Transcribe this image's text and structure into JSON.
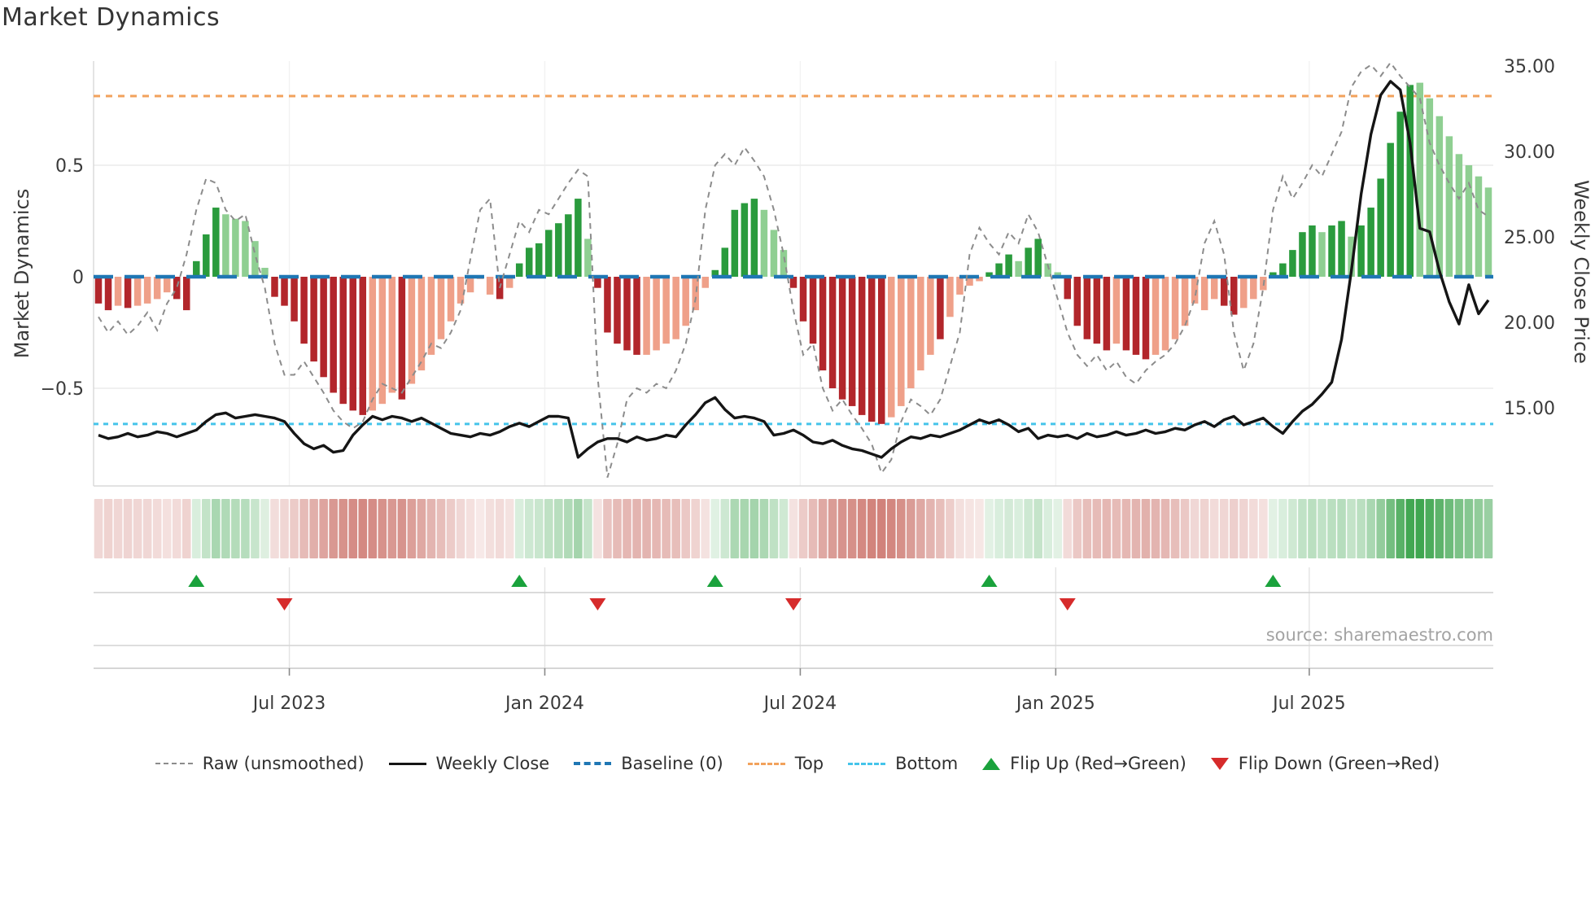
{
  "title": "Market Dynamics",
  "left_axis": {
    "label": "Market Dynamics",
    "ticks": [
      "0.5",
      "0",
      "−0.5"
    ],
    "tick_values": [
      0.5,
      0,
      -0.5
    ]
  },
  "right_axis": {
    "label": "Weekly Close Price",
    "ticks": [
      "35.00",
      "30.00",
      "25.00",
      "20.00",
      "15.00"
    ],
    "tick_values": [
      35,
      30,
      25,
      20,
      15
    ]
  },
  "x_axis": {
    "tick_labels": [
      "Jul 2023",
      "Jan 2024",
      "Jul 2024",
      "Jan 2025",
      "Jul 2025"
    ],
    "tick_weeks": [
      19.5,
      45.6,
      71.7,
      97.8,
      123.7
    ]
  },
  "source": "source: sharemaestro.com",
  "legend": {
    "items": [
      {
        "label": "Raw (unsmoothed)",
        "sample": "gray-dashed-line"
      },
      {
        "label": "Weekly Close",
        "sample": "black-solid-line"
      },
      {
        "label": "Baseline (0)",
        "sample": "blue-dashed-line"
      },
      {
        "label": "Top",
        "sample": "orange-dotted-line"
      },
      {
        "label": "Bottom",
        "sample": "cyan-dotted-line"
      },
      {
        "label": "Flip Up (Red→Green)",
        "sample": "green-up-triangle"
      },
      {
        "label": "Flip Down (Green→Red)",
        "sample": "red-down-triangle"
      }
    ]
  },
  "colors": {
    "dark_red": "#b2262b",
    "salmon": "#efa089",
    "dark_green": "#2a9b3d",
    "light_green": "#8fcf92",
    "baseline_blue": "#1f77b4",
    "top_orange": "#f2a25c",
    "bottom_cyan": "#45c4ea",
    "raw_gray": "#8c8c8c",
    "price_black": "#151515",
    "flip_up_green": "#1aa23c",
    "flip_down_red": "#d62b2b",
    "heat_red": "#c0544a",
    "heat_green": "#2f9e41",
    "grid": "#ececec",
    "spine": "#d8d8d8"
  },
  "chart_data": {
    "type": "bar",
    "description": "Weekly momentum oscillator bars (left axis) with raw unsmoothed dashed line, weekly close price line (right axis), baseline/top/bottom threshold lines, heatmap strip of bar intensity, and red/green flip markers",
    "baseline": 0,
    "top_line": 0.81,
    "bottom_line": -0.66,
    "ylim_left": [
      -0.95,
      0.97
    ],
    "ylim_right": [
      11.8,
      35.3
    ],
    "grid": true,
    "legend_position": "bottom",
    "bar_color_codes": {
      "dr": "dark_red",
      "sr": "salmon",
      "dg": "dark_green",
      "lg": "light_green"
    },
    "heatmap_from_bars": true,
    "flip_up_weeks": [
      10,
      43,
      63,
      91,
      120
    ],
    "flip_down_weeks": [
      19,
      51,
      71,
      99
    ],
    "bars": [
      [
        -0.12,
        "dr"
      ],
      [
        -0.15,
        "dr"
      ],
      [
        -0.13,
        "sr"
      ],
      [
        -0.14,
        "dr"
      ],
      [
        -0.13,
        "sr"
      ],
      [
        -0.12,
        "sr"
      ],
      [
        -0.1,
        "sr"
      ],
      [
        -0.07,
        "sr"
      ],
      [
        -0.1,
        "dr"
      ],
      [
        -0.15,
        "dr"
      ],
      [
        0.07,
        "dg"
      ],
      [
        0.19,
        "dg"
      ],
      [
        0.31,
        "dg"
      ],
      [
        0.28,
        "lg"
      ],
      [
        0.26,
        "lg"
      ],
      [
        0.25,
        "lg"
      ],
      [
        0.16,
        "lg"
      ],
      [
        0.04,
        "lg"
      ],
      [
        -0.09,
        "dr"
      ],
      [
        -0.13,
        "dr"
      ],
      [
        -0.2,
        "dr"
      ],
      [
        -0.3,
        "dr"
      ],
      [
        -0.38,
        "dr"
      ],
      [
        -0.45,
        "dr"
      ],
      [
        -0.52,
        "dr"
      ],
      [
        -0.57,
        "dr"
      ],
      [
        -0.6,
        "dr"
      ],
      [
        -0.62,
        "dr"
      ],
      [
        -0.6,
        "sr"
      ],
      [
        -0.57,
        "sr"
      ],
      [
        -0.52,
        "sr"
      ],
      [
        -0.55,
        "dr"
      ],
      [
        -0.48,
        "sr"
      ],
      [
        -0.42,
        "sr"
      ],
      [
        -0.35,
        "sr"
      ],
      [
        -0.28,
        "sr"
      ],
      [
        -0.2,
        "sr"
      ],
      [
        -0.12,
        "sr"
      ],
      [
        -0.07,
        "sr"
      ],
      [
        -0.01,
        "sr"
      ],
      [
        -0.08,
        "sr"
      ],
      [
        -0.1,
        "dr"
      ],
      [
        -0.05,
        "sr"
      ],
      [
        0.06,
        "dg"
      ],
      [
        0.13,
        "dg"
      ],
      [
        0.15,
        "dg"
      ],
      [
        0.21,
        "dg"
      ],
      [
        0.24,
        "dg"
      ],
      [
        0.28,
        "dg"
      ],
      [
        0.35,
        "dg"
      ],
      [
        0.17,
        "lg"
      ],
      [
        -0.05,
        "dr"
      ],
      [
        -0.25,
        "dr"
      ],
      [
        -0.3,
        "dr"
      ],
      [
        -0.33,
        "dr"
      ],
      [
        -0.35,
        "dr"
      ],
      [
        -0.35,
        "sr"
      ],
      [
        -0.33,
        "sr"
      ],
      [
        -0.3,
        "sr"
      ],
      [
        -0.28,
        "sr"
      ],
      [
        -0.22,
        "sr"
      ],
      [
        -0.15,
        "sr"
      ],
      [
        -0.05,
        "sr"
      ],
      [
        0.03,
        "dg"
      ],
      [
        0.13,
        "dg"
      ],
      [
        0.3,
        "dg"
      ],
      [
        0.33,
        "dg"
      ],
      [
        0.35,
        "dg"
      ],
      [
        0.3,
        "lg"
      ],
      [
        0.21,
        "lg"
      ],
      [
        0.12,
        "lg"
      ],
      [
        -0.05,
        "dr"
      ],
      [
        -0.2,
        "dr"
      ],
      [
        -0.3,
        "dr"
      ],
      [
        -0.42,
        "dr"
      ],
      [
        -0.5,
        "dr"
      ],
      [
        -0.55,
        "dr"
      ],
      [
        -0.58,
        "dr"
      ],
      [
        -0.62,
        "dr"
      ],
      [
        -0.65,
        "dr"
      ],
      [
        -0.66,
        "dr"
      ],
      [
        -0.63,
        "sr"
      ],
      [
        -0.58,
        "sr"
      ],
      [
        -0.5,
        "sr"
      ],
      [
        -0.42,
        "sr"
      ],
      [
        -0.35,
        "sr"
      ],
      [
        -0.28,
        "dr"
      ],
      [
        -0.18,
        "sr"
      ],
      [
        -0.08,
        "sr"
      ],
      [
        -0.04,
        "sr"
      ],
      [
        -0.02,
        "sr"
      ],
      [
        0.02,
        "dg"
      ],
      [
        0.06,
        "dg"
      ],
      [
        0.1,
        "dg"
      ],
      [
        0.07,
        "lg"
      ],
      [
        0.13,
        "dg"
      ],
      [
        0.17,
        "dg"
      ],
      [
        0.06,
        "lg"
      ],
      [
        0.02,
        "lg"
      ],
      [
        -0.1,
        "dr"
      ],
      [
        -0.22,
        "dr"
      ],
      [
        -0.28,
        "dr"
      ],
      [
        -0.3,
        "dr"
      ],
      [
        -0.33,
        "dr"
      ],
      [
        -0.3,
        "sr"
      ],
      [
        -0.33,
        "dr"
      ],
      [
        -0.35,
        "dr"
      ],
      [
        -0.37,
        "dr"
      ],
      [
        -0.35,
        "sr"
      ],
      [
        -0.33,
        "sr"
      ],
      [
        -0.28,
        "sr"
      ],
      [
        -0.22,
        "sr"
      ],
      [
        -0.12,
        "sr"
      ],
      [
        -0.15,
        "sr"
      ],
      [
        -0.1,
        "sr"
      ],
      [
        -0.13,
        "dr"
      ],
      [
        -0.17,
        "dr"
      ],
      [
        -0.14,
        "sr"
      ],
      [
        -0.1,
        "sr"
      ],
      [
        -0.06,
        "sr"
      ],
      [
        0.02,
        "dg"
      ],
      [
        0.06,
        "dg"
      ],
      [
        0.12,
        "dg"
      ],
      [
        0.2,
        "dg"
      ],
      [
        0.23,
        "dg"
      ],
      [
        0.2,
        "lg"
      ],
      [
        0.23,
        "dg"
      ],
      [
        0.25,
        "dg"
      ],
      [
        0.18,
        "lg"
      ],
      [
        0.23,
        "dg"
      ],
      [
        0.31,
        "dg"
      ],
      [
        0.44,
        "dg"
      ],
      [
        0.6,
        "dg"
      ],
      [
        0.74,
        "dg"
      ],
      [
        0.86,
        "dg"
      ],
      [
        0.87,
        "lg"
      ],
      [
        0.8,
        "lg"
      ],
      [
        0.72,
        "lg"
      ],
      [
        0.63,
        "lg"
      ],
      [
        0.55,
        "lg"
      ],
      [
        0.5,
        "lg"
      ],
      [
        0.45,
        "lg"
      ],
      [
        0.4,
        "lg"
      ]
    ],
    "raw": [
      -0.18,
      -0.25,
      -0.2,
      -0.26,
      -0.22,
      -0.16,
      -0.24,
      -0.12,
      -0.05,
      0.1,
      0.3,
      0.44,
      0.42,
      0.3,
      0.25,
      0.28,
      0.1,
      -0.05,
      -0.3,
      -0.44,
      -0.44,
      -0.38,
      -0.45,
      -0.52,
      -0.6,
      -0.65,
      -0.68,
      -0.65,
      -0.55,
      -0.48,
      -0.5,
      -0.52,
      -0.45,
      -0.38,
      -0.3,
      -0.32,
      -0.25,
      -0.15,
      0.08,
      0.3,
      0.35,
      -0.05,
      0.1,
      0.25,
      0.2,
      0.3,
      0.28,
      0.35,
      0.42,
      0.48,
      0.45,
      -0.45,
      -0.9,
      -0.75,
      -0.55,
      -0.5,
      -0.52,
      -0.48,
      -0.5,
      -0.42,
      -0.3,
      -0.1,
      0.3,
      0.5,
      0.55,
      0.5,
      0.58,
      0.52,
      0.45,
      0.3,
      0.1,
      -0.15,
      -0.35,
      -0.3,
      -0.5,
      -0.6,
      -0.55,
      -0.62,
      -0.68,
      -0.75,
      -0.88,
      -0.82,
      -0.65,
      -0.55,
      -0.58,
      -0.62,
      -0.55,
      -0.4,
      -0.25,
      0.1,
      0.22,
      0.15,
      0.1,
      0.2,
      0.15,
      0.28,
      0.2,
      0.05,
      -0.1,
      -0.25,
      -0.35,
      -0.4,
      -0.35,
      -0.42,
      -0.38,
      -0.45,
      -0.48,
      -0.42,
      -0.38,
      -0.35,
      -0.3,
      -0.22,
      -0.1,
      0.15,
      0.25,
      0.1,
      -0.25,
      -0.42,
      -0.3,
      -0.05,
      0.3,
      0.45,
      0.35,
      0.42,
      0.5,
      0.45,
      0.55,
      0.65,
      0.85,
      0.92,
      0.95,
      0.9,
      0.96,
      0.9,
      0.85,
      0.8,
      0.6,
      0.5,
      0.42,
      0.35,
      0.42,
      0.3,
      0.27
    ],
    "price": [
      13.4,
      13.2,
      13.3,
      13.5,
      13.3,
      13.4,
      13.6,
      13.5,
      13.3,
      13.5,
      13.7,
      14.2,
      14.6,
      14.7,
      14.4,
      14.5,
      14.6,
      14.5,
      14.4,
      14.2,
      13.5,
      12.9,
      12.6,
      12.8,
      12.4,
      12.5,
      13.4,
      14.0,
      14.5,
      14.3,
      14.5,
      14.4,
      14.2,
      14.4,
      14.1,
      13.8,
      13.5,
      13.4,
      13.3,
      13.5,
      13.4,
      13.6,
      13.9,
      14.1,
      13.9,
      14.2,
      14.5,
      14.5,
      14.4,
      12.1,
      12.6,
      13.0,
      13.2,
      13.2,
      13.0,
      13.3,
      13.1,
      13.2,
      13.4,
      13.3,
      14.0,
      14.6,
      15.3,
      15.6,
      14.9,
      14.4,
      14.5,
      14.4,
      14.2,
      13.4,
      13.5,
      13.7,
      13.4,
      13.0,
      12.9,
      13.1,
      12.8,
      12.6,
      12.5,
      12.3,
      12.1,
      12.6,
      13.0,
      13.3,
      13.2,
      13.4,
      13.3,
      13.5,
      13.7,
      14.0,
      14.3,
      14.1,
      14.3,
      14.0,
      13.6,
      13.8,
      13.2,
      13.4,
      13.3,
      13.4,
      13.2,
      13.5,
      13.3,
      13.4,
      13.6,
      13.4,
      13.5,
      13.7,
      13.5,
      13.6,
      13.8,
      13.7,
      14.0,
      14.2,
      13.9,
      14.3,
      14.5,
      14.0,
      14.2,
      14.4,
      13.9,
      13.5,
      14.2,
      14.8,
      15.2,
      15.8,
      16.5,
      19.0,
      23.0,
      27.5,
      31.0,
      33.3,
      34.1,
      33.6,
      30.5,
      25.5,
      25.3,
      23.0,
      21.2,
      19.9,
      22.2,
      20.5,
      21.3
    ]
  }
}
